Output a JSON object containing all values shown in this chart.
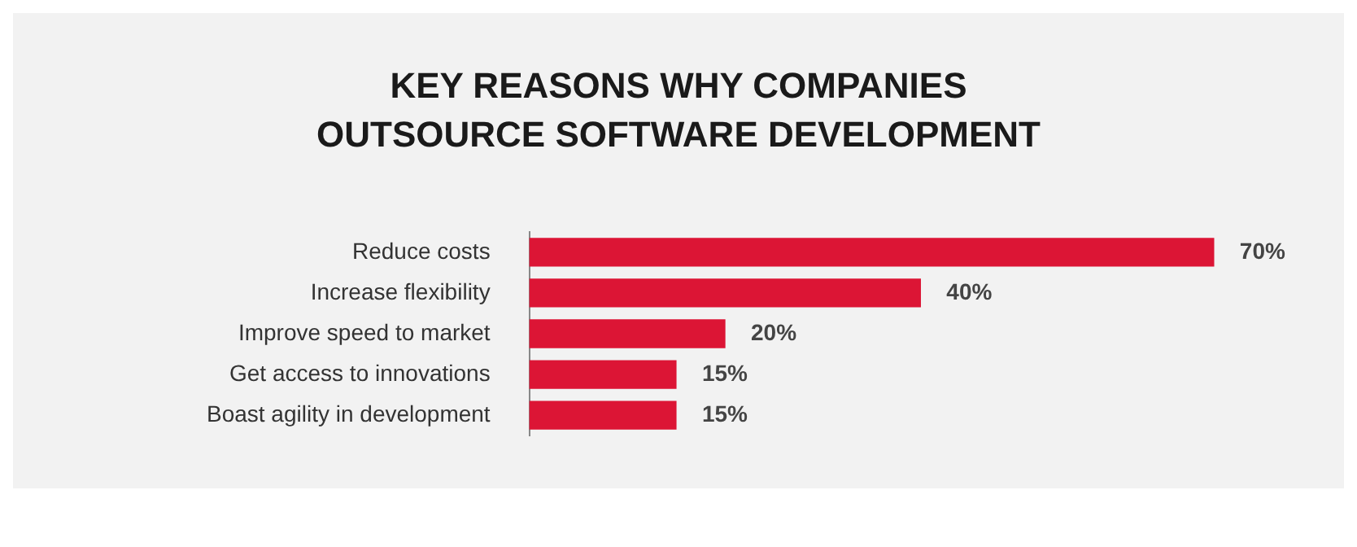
{
  "chart_data": {
    "type": "bar",
    "orientation": "horizontal",
    "title": "KEY REASONS WHY COMPANIES OUTSOURCE SOFTWARE DEVELOPMENT",
    "categories": [
      "Reduce costs",
      "Increase flexibility",
      "Improve speed to market",
      "Get access to innovations",
      "Boast agility in development"
    ],
    "values": [
      70,
      40,
      20,
      15,
      15
    ],
    "value_labels": [
      "70%",
      "40%",
      "20%",
      "15%",
      "15%"
    ],
    "color": "#dc1535",
    "legend": false
  }
}
